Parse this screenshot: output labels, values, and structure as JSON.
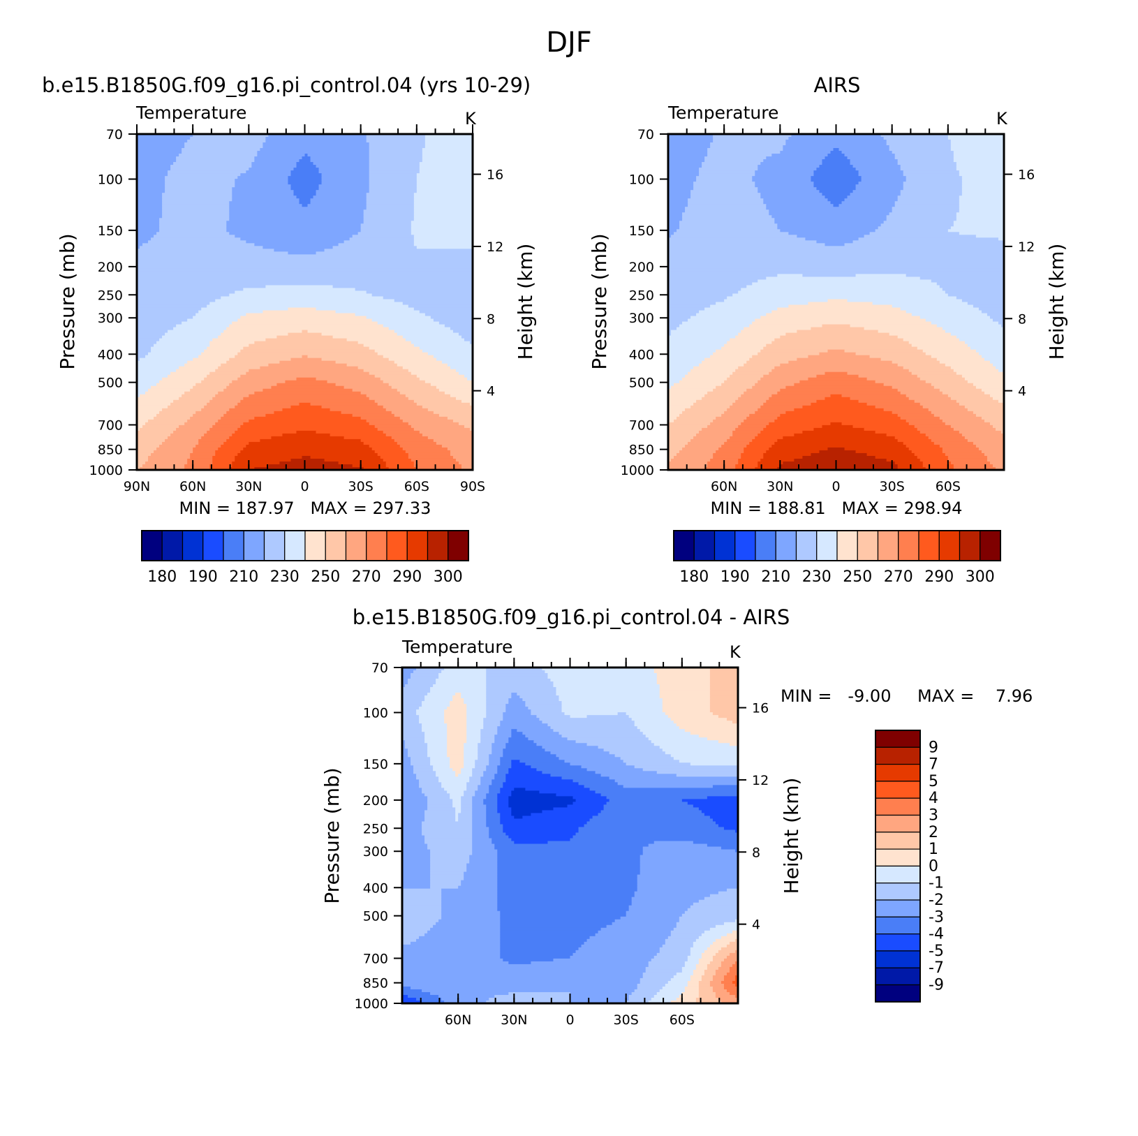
{
  "figure": {
    "title": "DJF"
  },
  "colors": {
    "abs": [
      "#00007f",
      "#0019a8",
      "#0032d4",
      "#1a4cff",
      "#4a7ef7",
      "#7ea6ff",
      "#aec9ff",
      "#d6e8ff",
      "#ffe3cf",
      "#ffc7a8",
      "#ffa680",
      "#ff7f4f",
      "#ff5a1e",
      "#e63a00",
      "#b82200",
      "#7f0000"
    ],
    "diff": [
      "#00007f",
      "#0019a8",
      "#0032d4",
      "#1a4cff",
      "#4a7ef7",
      "#7ea6ff",
      "#aec9ff",
      "#d6e8ff",
      "#ffe3cf",
      "#ffc7a8",
      "#ffa680",
      "#ff7f4f",
      "#ff5a1e",
      "#e63a00",
      "#b82200",
      "#7f0000"
    ]
  },
  "chart_data": [
    {
      "type": "heatmap",
      "title": "b.e15.B1850G.f09_g16.pi_control.04 (yrs 10-29)",
      "subtitle_left": "Temperature",
      "subtitle_right": "K",
      "ylabel": "Pressure (mb)",
      "ylabel_right": "Height (km)",
      "xticks": [
        "90N",
        "60N",
        "30N",
        "0",
        "30S",
        "60S",
        "90S"
      ],
      "yticks": [
        "70",
        "100",
        "150",
        "200",
        "250",
        "300",
        "400",
        "500",
        "700",
        "850",
        "1000"
      ],
      "ylim": [
        1000,
        70
      ],
      "yticks_right": [
        "16",
        "12",
        "8",
        "4"
      ],
      "stats": "MIN = 187.97   MAX = 297.33",
      "levels": [
        "180",
        "190",
        "210",
        "230",
        "250",
        "270",
        "290",
        "300"
      ],
      "field": {
        "x": [
          -90,
          -60,
          -30,
          0,
          30,
          60,
          90
        ],
        "p": [
          70,
          100,
          150,
          200,
          250,
          300,
          400,
          500,
          700,
          850,
          1000
        ],
        "t": [
          [
            205,
            210,
            214,
            203,
            209,
            218,
            230
          ],
          [
            207,
            213,
            209,
            196,
            208,
            220,
            229
          ],
          [
            208,
            213,
            208,
            203,
            210,
            221,
            225
          ],
          [
            212,
            213,
            214,
            213,
            215,
            219,
            215
          ],
          [
            214,
            216,
            222,
            224,
            221,
            216,
            212
          ],
          [
            215,
            220,
            232,
            235,
            231,
            222,
            214
          ],
          [
            218,
            228,
            243,
            249,
            244,
            232,
            222
          ],
          [
            225,
            238,
            255,
            263,
            256,
            242,
            230
          ],
          [
            238,
            253,
            272,
            278,
            273,
            258,
            248
          ],
          [
            245,
            260,
            283,
            288,
            284,
            266,
            255
          ],
          [
            250,
            262,
            290,
            294,
            291,
            270,
            258
          ]
        ]
      }
    },
    {
      "type": "heatmap",
      "title": "AIRS",
      "subtitle_left": "Temperature",
      "subtitle_right": "K",
      "ylabel": "Pressure (mb)",
      "ylabel_right": "Height (km)",
      "xticks": [
        "60N",
        "30N",
        "0",
        "30S",
        "60S"
      ],
      "yticks": [
        "70",
        "100",
        "150",
        "200",
        "250",
        "300",
        "400",
        "500",
        "700",
        "850",
        "1000"
      ],
      "ylim": [
        1000,
        70
      ],
      "yticks_right": [
        "16",
        "12",
        "8",
        "4"
      ],
      "stats": "MIN = 188.81   MAX = 298.94",
      "levels": [
        "180",
        "190",
        "210",
        "230",
        "250",
        "270",
        "290",
        "300"
      ],
      "field": {
        "x": [
          -90,
          -60,
          -30,
          0,
          30,
          60,
          90
        ],
        "p": [
          70,
          100,
          150,
          200,
          250,
          300,
          400,
          500,
          700,
          850,
          1000
        ],
        "t": [
          [
            205,
            211,
            212,
            202,
            212,
            220,
            226
          ],
          [
            207,
            213,
            207,
            194,
            207,
            219,
            223
          ],
          [
            209,
            215,
            210,
            205,
            212,
            220,
            221
          ],
          [
            214,
            216,
            218,
            216,
            218,
            218,
            217
          ],
          [
            216,
            219,
            225,
            228,
            226,
            220,
            215
          ],
          [
            218,
            223,
            234,
            238,
            234,
            226,
            218
          ],
          [
            222,
            232,
            246,
            252,
            247,
            236,
            225
          ],
          [
            228,
            240,
            257,
            266,
            258,
            245,
            232
          ],
          [
            240,
            254,
            274,
            281,
            275,
            260,
            247
          ],
          [
            246,
            262,
            285,
            291,
            286,
            268,
            254
          ],
          [
            252,
            265,
            292,
            297,
            293,
            272,
            258
          ]
        ]
      }
    },
    {
      "type": "heatmap",
      "title": "b.e15.B1850G.f09_g16.pi_control.04 - AIRS",
      "subtitle_left": "Temperature",
      "subtitle_right": "K",
      "ylabel": "Pressure (mb)",
      "ylabel_right": "Height (km)",
      "xticks": [
        "60N",
        "30N",
        "0",
        "30S",
        "60S"
      ],
      "yticks": [
        "70",
        "100",
        "150",
        "200",
        "250",
        "300",
        "400",
        "500",
        "700",
        "850",
        "1000"
      ],
      "ylim": [
        1000,
        70
      ],
      "yticks_right": [
        "16",
        "12",
        "8",
        "4"
      ],
      "stats_min": "MIN =   -9.00",
      "stats_max": "MAX =    7.96",
      "levels": [
        "9",
        "7",
        "5",
        "4",
        "3",
        "2",
        "1",
        "0",
        "-1",
        "-2",
        "-3",
        "-4",
        "-5",
        "-7",
        "-9"
      ],
      "field": {
        "x": [
          -90,
          -60,
          -30,
          0,
          30,
          60,
          90
        ],
        "p": [
          70,
          100,
          150,
          200,
          250,
          300,
          400,
          500,
          700,
          850,
          1000
        ],
        "t": [
          [
            -2.5,
            -0.5,
            -1.5,
            -0.5,
            -0.5,
            0.5,
            1.5
          ],
          [
            -1.5,
            0.5,
            -2.5,
            -0.8,
            -1.0,
            0.5,
            1.5
          ],
          [
            -2.5,
            0.5,
            -4.2,
            -3.0,
            -2.0,
            -1.0,
            -0.8
          ],
          [
            -3.0,
            -0.8,
            -5.5,
            -5.2,
            -3.5,
            -4.0,
            -4.5
          ],
          [
            -2.5,
            -1.0,
            -4.8,
            -4.2,
            -3.0,
            -3.5,
            -4.2
          ],
          [
            -2.5,
            -1.5,
            -3.6,
            -3.8,
            -3.2,
            -2.5,
            -3.0
          ],
          [
            -2.0,
            -2.0,
            -3.4,
            -3.8,
            -3.2,
            -2.2,
            -2.0
          ],
          [
            -1.5,
            -2.2,
            -3.3,
            -3.3,
            -3.0,
            -2.0,
            -1.5
          ],
          [
            -2.2,
            -2.4,
            -3.2,
            -3.0,
            -2.5,
            -1.5,
            3.0
          ],
          [
            -2.5,
            -2.0,
            -2.5,
            -2.0,
            -2.5,
            -0.5,
            4.5
          ],
          [
            -5.0,
            -2.5,
            -1.5,
            -2.0,
            -2.0,
            0.5,
            2.5
          ]
        ]
      }
    }
  ]
}
